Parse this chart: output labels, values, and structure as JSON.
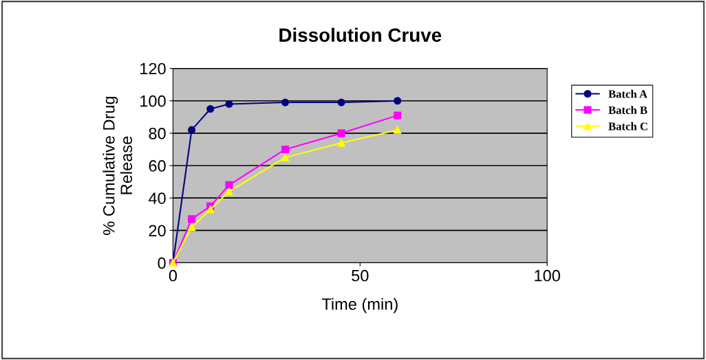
{
  "chart_data": {
    "type": "line",
    "title": "Dissolution Cruve",
    "xlabel": "Time (min)",
    "ylabel": "% Cumulative Drug\nRelease",
    "x": [
      0,
      5,
      10,
      15,
      30,
      45,
      60
    ],
    "series": [
      {
        "name": "Batch A",
        "color": "#000080",
        "marker": "circle",
        "values": [
          0,
          82,
          95,
          98,
          99,
          99,
          100
        ]
      },
      {
        "name": "Batch B",
        "color": "#ff00ff",
        "marker": "square",
        "values": [
          0,
          27,
          35,
          48,
          70,
          80,
          91
        ]
      },
      {
        "name": "Batch C",
        "color": "#ffff00",
        "marker": "triangle",
        "values": [
          0,
          22,
          33,
          44,
          65,
          74,
          82
        ]
      }
    ],
    "xlim": [
      0,
      100
    ],
    "xticks": [
      0,
      50,
      100
    ],
    "ylim": [
      0,
      120
    ],
    "yticks": [
      0,
      20,
      40,
      60,
      80,
      100,
      120
    ],
    "grid": "y",
    "legend": "right",
    "line_style": "solid"
  }
}
